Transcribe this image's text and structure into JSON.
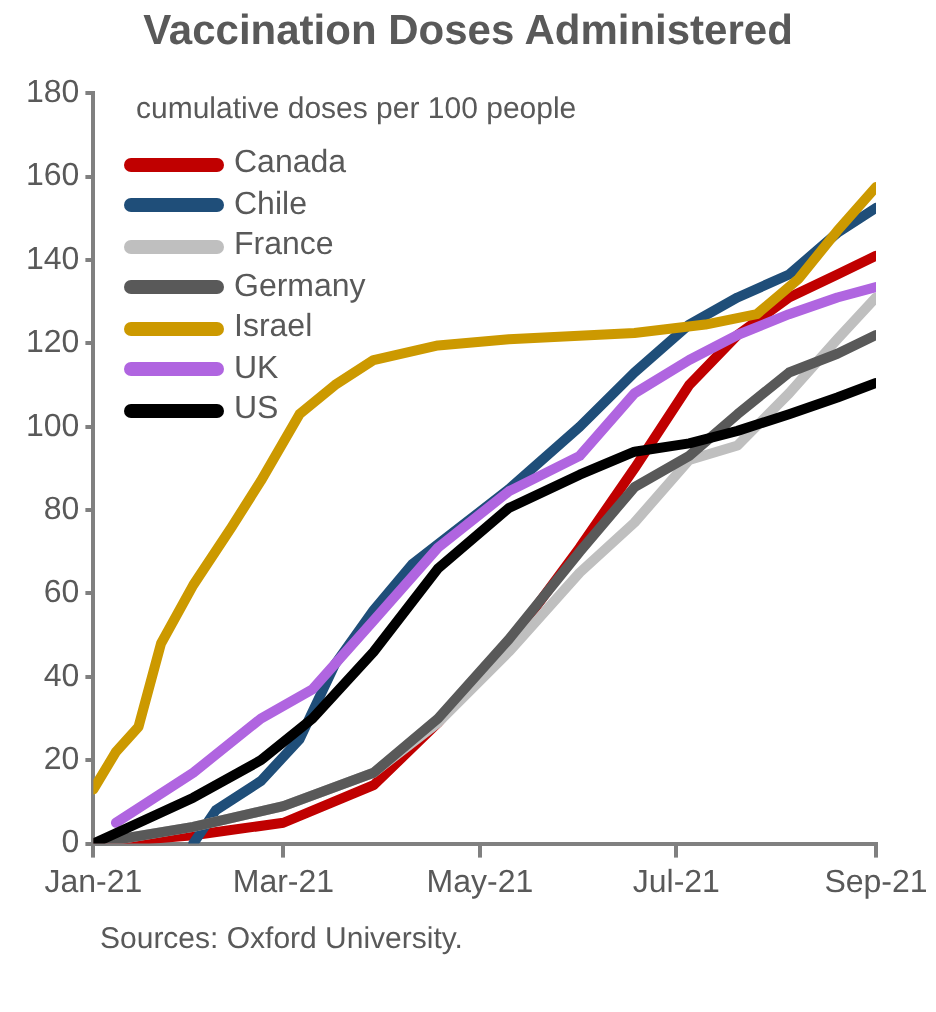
{
  "chart_data": {
    "type": "line",
    "title": "Vaccination Doses Administered",
    "ylabel": "cumulative doses per 100 people",
    "xlim": [
      "2021-01-01",
      "2021-09-01"
    ],
    "xticks": [
      {
        "value": "2021-01-01",
        "label": "Jan-21"
      },
      {
        "value": "2021-03-01",
        "label": "Mar-21"
      },
      {
        "value": "2021-05-01",
        "label": "May-21"
      },
      {
        "value": "2021-07-01",
        "label": "Jul-21"
      },
      {
        "value": "2021-09-01",
        "label": "Sep-21"
      }
    ],
    "ylim": [
      0,
      180
    ],
    "yticks": [
      0,
      20,
      40,
      60,
      80,
      100,
      120,
      140,
      160,
      180
    ],
    "grid": false,
    "legend": "top left",
    "marker": "none",
    "line_style": "solid",
    "annotations": [
      "Sources: Oxford University."
    ],
    "series": [
      {
        "name": "Canada",
        "color": "#c00000",
        "x": [
          "2021-01-01",
          "2021-02-01",
          "2021-03-01",
          "2021-03-29",
          "2021-04-18",
          "2021-05-10",
          "2021-06-01",
          "2021-06-18",
          "2021-07-05",
          "2021-07-20",
          "2021-08-05",
          "2021-08-20",
          "2021-09-01"
        ],
        "values": [
          0,
          2,
          5,
          14,
          29,
          48,
          71,
          90,
          110,
          122,
          131,
          136.5,
          141
        ]
      },
      {
        "name": "Chile",
        "color": "#1f4e79",
        "x": [
          "2021-02-01",
          "2021-02-08",
          "2021-02-22",
          "2021-03-06",
          "2021-03-17",
          "2021-03-29",
          "2021-04-10",
          "2021-04-25",
          "2021-05-10",
          "2021-06-01",
          "2021-06-18",
          "2021-07-05",
          "2021-07-20",
          "2021-08-05",
          "2021-08-20",
          "2021-09-01"
        ],
        "values": [
          0,
          8,
          15,
          25,
          43,
          56,
          67,
          76,
          85,
          100,
          113,
          124.5,
          131,
          136.5,
          146.5,
          152.5
        ]
      },
      {
        "name": "France",
        "color": "#bfbfbf",
        "x": [
          "2021-01-01",
          "2021-02-01",
          "2021-03-01",
          "2021-03-29",
          "2021-04-18",
          "2021-05-10",
          "2021-06-01",
          "2021-06-18",
          "2021-07-05",
          "2021-07-20",
          "2021-08-05",
          "2021-08-20",
          "2021-09-01"
        ],
        "values": [
          0,
          4,
          9,
          17,
          29,
          46,
          65,
          77,
          92,
          95.5,
          108,
          121,
          131
        ]
      },
      {
        "name": "Germany",
        "color": "#595959",
        "x": [
          "2021-01-01",
          "2021-02-01",
          "2021-03-01",
          "2021-03-29",
          "2021-04-18",
          "2021-05-10",
          "2021-06-01",
          "2021-06-18",
          "2021-07-05",
          "2021-07-20",
          "2021-08-05",
          "2021-08-20",
          "2021-09-01"
        ],
        "values": [
          0,
          4,
          9,
          17,
          30,
          49,
          70,
          85.5,
          93,
          103,
          113,
          117.5,
          122
        ]
      },
      {
        "name": "Israel",
        "color": "#cc9900",
        "x": [
          "2021-01-01",
          "2021-01-08",
          "2021-01-15",
          "2021-01-22",
          "2021-02-01",
          "2021-02-13",
          "2021-02-22",
          "2021-03-06",
          "2021-03-17",
          "2021-03-29",
          "2021-04-18",
          "2021-05-10",
          "2021-06-18",
          "2021-07-10",
          "2021-07-26",
          "2021-08-08",
          "2021-08-20",
          "2021-09-01"
        ],
        "values": [
          13,
          22,
          28,
          48,
          62,
          76,
          87,
          103,
          110,
          116,
          119.5,
          121,
          122.5,
          124.5,
          127,
          135.5,
          147,
          157.5
        ]
      },
      {
        "name": "UK",
        "color": "#b065e0",
        "x": [
          "2021-01-08",
          "2021-02-01",
          "2021-02-22",
          "2021-03-10",
          "2021-03-29",
          "2021-04-18",
          "2021-05-10",
          "2021-06-01",
          "2021-06-18",
          "2021-07-05",
          "2021-07-20",
          "2021-08-05",
          "2021-08-20",
          "2021-09-01"
        ],
        "values": [
          5,
          17,
          30,
          37,
          53.5,
          71,
          84.5,
          93,
          108,
          116,
          122,
          127,
          131,
          133.5
        ]
      },
      {
        "name": "US",
        "color": "#000000",
        "x": [
          "2021-01-01",
          "2021-01-08",
          "2021-02-01",
          "2021-02-22",
          "2021-03-10",
          "2021-03-29",
          "2021-04-18",
          "2021-05-10",
          "2021-06-01",
          "2021-06-18",
          "2021-07-05",
          "2021-07-20",
          "2021-08-05",
          "2021-08-20",
          "2021-09-01"
        ],
        "values": [
          0,
          2.5,
          11,
          20,
          30,
          46,
          66,
          80.5,
          88.5,
          94,
          96,
          99,
          103,
          107,
          110.5
        ]
      }
    ]
  }
}
